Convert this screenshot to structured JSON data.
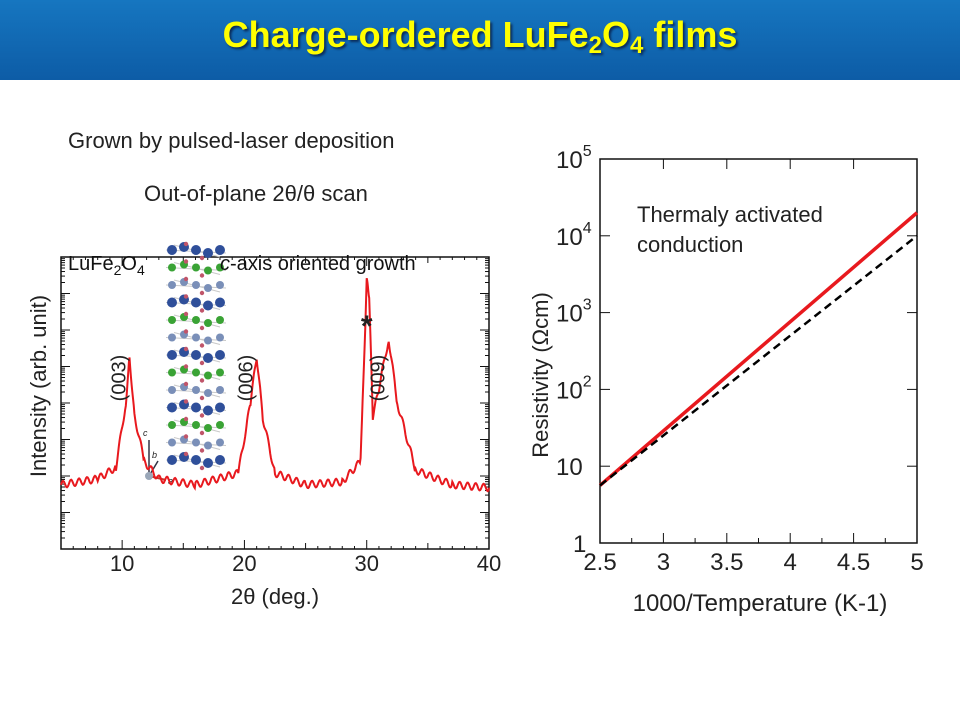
{
  "slide": {
    "title_main": "Charge-ordered LuFe",
    "title_sub1": "2",
    "title_mid": "O",
    "title_sub2": "4",
    "title_end": " films",
    "subtitle_1": "Grown by pulsed-laser deposition",
    "subtitle_2": "Out-of-plane 2θ/θ scan"
  },
  "colors": {
    "header": "#0d5ca6",
    "title": "#ffff00",
    "data_red": "#e8191e",
    "fit_line": "#000000"
  },
  "chart_data": [
    {
      "type": "line",
      "title": "",
      "xlabel": "2θ (deg.)",
      "ylabel": "Intensity (arb. unit)",
      "xlim": [
        5,
        40
      ],
      "x_ticks": [
        10,
        20,
        30,
        40
      ],
      "y_scale": "log",
      "inset_material_label": "LuFe2O4",
      "inset_axes_labels": [
        "c",
        "b",
        "a"
      ],
      "annotation": "c-axis oriented growth",
      "series": [
        {
          "values_description_free": true,
          "x": [
            5.0,
            8.0,
            9.5,
            10.3,
            10.6,
            11.0,
            11.8,
            13.0,
            16.0,
            19.5,
            20.5,
            21.0,
            21.5,
            22.5,
            25.0,
            28.0,
            29.5,
            30.0,
            30.2,
            30.5,
            31.0,
            31.8,
            32.5,
            34.0,
            37.0,
            40.0
          ],
          "y_rel": [
            0.22,
            0.24,
            0.28,
            0.5,
            0.66,
            0.46,
            0.3,
            0.24,
            0.22,
            0.26,
            0.5,
            0.66,
            0.45,
            0.26,
            0.22,
            0.23,
            0.3,
            0.92,
            0.86,
            0.45,
            0.55,
            0.72,
            0.5,
            0.27,
            0.22,
            0.21
          ]
        }
      ],
      "peaks": [
        {
          "x": 10.6,
          "label": "(003)"
        },
        {
          "x": 21.0,
          "label": "(006)"
        },
        {
          "x": 31.8,
          "label": "(009)"
        }
      ],
      "impurity_marker": {
        "x": 30.1,
        "label": "*"
      }
    },
    {
      "type": "line",
      "title": "",
      "xlabel": "1000/Temperature (K-1)",
      "ylabel": "Resistivity (Ωcm)",
      "xlim": [
        2.5,
        5
      ],
      "ylim_log10": [
        0,
        5
      ],
      "y_scale": "log",
      "x_ticks": [
        "2.5",
        "3",
        "3.5",
        "4",
        "4.5",
        "5"
      ],
      "y_ticks": [
        {
          "exp": 0,
          "label": "1"
        },
        {
          "exp": 1,
          "label": "10"
        },
        {
          "exp": 2,
          "label": "10",
          "sup": "2"
        },
        {
          "exp": 3,
          "label": "10",
          "sup": "3"
        },
        {
          "exp": 4,
          "label": "10",
          "sup": "4"
        },
        {
          "exp": 5,
          "label": "10",
          "sup": "5"
        }
      ],
      "annotation": [
        "Thermaly activated",
        " conduction"
      ],
      "series": [
        {
          "x": [
            2.5,
            5.0
          ],
          "log10_y": [
            0.75,
            4.3
          ],
          "style": "solid"
        },
        {
          "x": [
            2.5,
            5.0
          ],
          "log10_y": [
            0.75,
            4.0
          ],
          "style": "dashed"
        }
      ]
    }
  ]
}
